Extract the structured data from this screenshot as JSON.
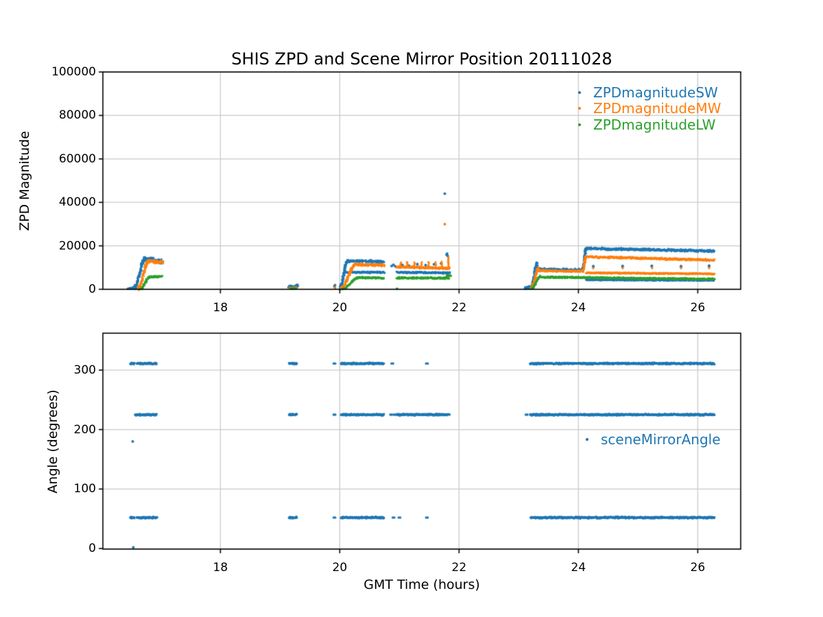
{
  "colors": {
    "blue": "#1f77b4",
    "orange": "#ff7f0e",
    "green": "#2ca02c",
    "grid": "#c9c9c9",
    "spine": "#000000",
    "text": "#000000",
    "background": "#ffffff"
  },
  "chart_data": [
    {
      "type": "scatter",
      "title": "SHIS ZPD and Scene Mirror Position 20111028",
      "xlabel": "",
      "ylabel": "ZPD Magnitude",
      "xlim": [
        16.03,
        26.72
      ],
      "ylim": [
        0,
        100000
      ],
      "xticks": [
        18,
        20,
        22,
        24,
        26
      ],
      "yticks": [
        0,
        20000,
        40000,
        60000,
        80000,
        100000
      ],
      "grid": true,
      "legend": {
        "position": "upper right",
        "frame": false,
        "entries": [
          {
            "label": "ZPDmagnitudeSW",
            "color": "#1f77b4"
          },
          {
            "label": "ZPDmagnitudeMW",
            "color": "#ff7f0e"
          },
          {
            "label": "ZPDmagnitudeLW",
            "color": "#2ca02c"
          }
        ]
      },
      "series": [
        {
          "name": "ZPDmagnitudeSW",
          "color": "#1f77b4",
          "bands": [
            {
              "t": [
                16.47,
                16.57
              ],
              "v": [
                300,
                900
              ],
              "s": 600
            },
            {
              "t": [
                16.57,
                16.73
              ],
              "v": [
                900,
                14200
              ],
              "s": 1400,
              "ramp": true
            },
            {
              "t": [
                16.73,
                17.03
              ],
              "v": [
                14000,
                12700
              ],
              "s": 1300
            },
            {
              "t": [
                19.15,
                19.3
              ],
              "v": [
                1200,
                1400
              ],
              "s": 1000
            },
            {
              "t": [
                20.0,
                20.13
              ],
              "v": [
                700,
                12900
              ],
              "s": 1000,
              "ramp": true
            },
            {
              "t": [
                20.13,
                20.74
              ],
              "v": [
                13100,
                12700
              ],
              "s": 700
            },
            {
              "t": [
                20.08,
                20.74
              ],
              "v": [
                7900,
                7800
              ],
              "s": 450
            },
            {
              "t": [
                20.95,
                21.85
              ],
              "v": [
                7800,
                7600
              ],
              "s": 450
            },
            {
              "t": [
                23.1,
                23.21
              ],
              "v": [
                600,
                1100
              ],
              "s": 700
            },
            {
              "t": [
                23.21,
                23.31
              ],
              "v": [
                1000,
                11800
              ],
              "s": 1200,
              "ramp": true
            },
            {
              "t": [
                23.31,
                24.07
              ],
              "v": [
                9300,
                8900
              ],
              "s": 650
            },
            {
              "t": [
                24.07,
                24.13
              ],
              "v": [
                9000,
                18800
              ],
              "s": 900,
              "ramp": true
            },
            {
              "t": [
                24.13,
                26.28
              ],
              "v": [
                18800,
                17600
              ],
              "s": 650
            },
            {
              "t": [
                24.13,
                26.28
              ],
              "v": [
                4350,
                4100
              ],
              "s": 280
            }
          ],
          "vlines": [],
          "points": [
            [
              16.45,
              250
            ],
            [
              19.91,
              1300
            ],
            [
              19.92,
              1900
            ],
            [
              20.87,
              10700
            ],
            [
              20.9,
              11300
            ],
            [
              20.93,
              10600
            ],
            [
              21.05,
              11200
            ],
            [
              21.16,
              10900
            ],
            [
              21.3,
              11600
            ],
            [
              21.44,
              11100
            ],
            [
              21.58,
              11500
            ],
            [
              21.7,
              11900
            ],
            [
              21.76,
              44000
            ],
            [
              21.79,
              15900
            ],
            [
              21.8,
              16400
            ],
            [
              21.81,
              15300
            ],
            [
              23.12,
              400
            ],
            [
              24.25,
              10350
            ],
            [
              24.25,
              10650
            ],
            [
              24.74,
              10300
            ],
            [
              24.74,
              10700
            ],
            [
              25.23,
              10450
            ],
            [
              25.23,
              10800
            ],
            [
              25.72,
              10350
            ],
            [
              25.72,
              10650
            ],
            [
              26.19,
              10500
            ],
            [
              26.19,
              10900
            ]
          ]
        },
        {
          "name": "ZPDmagnitudeMW",
          "color": "#ff7f0e",
          "bands": [
            {
              "t": [
                16.62,
                16.79
              ],
              "v": [
                400,
                12600
              ],
              "s": 1100,
              "ramp": true
            },
            {
              "t": [
                16.79,
                17.04
              ],
              "v": [
                12900,
                12500
              ],
              "s": 900
            },
            {
              "t": [
                19.16,
                19.28
              ],
              "v": [
                600,
                700
              ],
              "s": 400
            },
            {
              "t": [
                20.02,
                20.26
              ],
              "v": [
                400,
                11300
              ],
              "s": 900,
              "ramp": true
            },
            {
              "t": [
                20.26,
                20.74
              ],
              "v": [
                11400,
                11100
              ],
              "s": 600
            },
            {
              "t": [
                20.95,
                21.85
              ],
              "v": [
                10300,
                9700
              ],
              "s": 550
            },
            {
              "t": [
                23.21,
                23.33
              ],
              "v": [
                400,
                9400
              ],
              "s": 900,
              "ramp": true
            },
            {
              "t": [
                23.33,
                24.07
              ],
              "v": [
                8600,
                8300
              ],
              "s": 550
            },
            {
              "t": [
                24.07,
                24.13
              ],
              "v": [
                8500,
                15000
              ],
              "s": 700,
              "ramp": true
            },
            {
              "t": [
                24.13,
                26.28
              ],
              "v": [
                15000,
                13400
              ],
              "s": 550
            },
            {
              "t": [
                24.13,
                26.28
              ],
              "v": [
                7600,
                7100
              ],
              "s": 350
            }
          ],
          "vlines": [
            [
              21.02,
              10500,
              12400
            ],
            [
              21.13,
              10500,
              12600
            ],
            [
              21.25,
              10400,
              12400
            ],
            [
              21.37,
              10500,
              12500
            ],
            [
              21.49,
              10400,
              12600
            ],
            [
              21.61,
              10500,
              12500
            ],
            [
              21.71,
              10500,
              12700
            ],
            [
              21.82,
              9800,
              14800
            ],
            [
              24.25,
              9200,
              10000
            ],
            [
              24.74,
              9200,
              10000
            ],
            [
              25.23,
              9200,
              10000
            ],
            [
              25.72,
              9200,
              10000
            ],
            [
              26.19,
              9200,
              10000
            ]
          ],
          "points": [
            [
              19.92,
              700
            ],
            [
              21.76,
              30000
            ]
          ]
        },
        {
          "name": "ZPDmagnitudeLW",
          "color": "#2ca02c",
          "bands": [
            {
              "t": [
                16.66,
                16.81
              ],
              "v": [
                250,
                5500
              ],
              "s": 550,
              "ramp": true
            },
            {
              "t": [
                16.81,
                17.02
              ],
              "v": [
                5600,
                5950
              ],
              "s": 500
            },
            {
              "t": [
                19.17,
                19.27
              ],
              "v": [
                350,
                400
              ],
              "s": 250
            },
            {
              "t": [
                20.05,
                20.31
              ],
              "v": [
                250,
                5400
              ],
              "s": 500,
              "ramp": true
            },
            {
              "t": [
                20.31,
                20.74
              ],
              "v": [
                5400,
                5200
              ],
              "s": 420
            },
            {
              "t": [
                20.95,
                21.83
              ],
              "v": [
                5250,
                5150
              ],
              "s": 470
            },
            {
              "t": [
                21.79,
                21.86
              ],
              "v": [
                5900,
                6300
              ],
              "s": 700
            },
            {
              "t": [
                23.22,
                23.36
              ],
              "v": [
                300,
                6000
              ],
              "s": 550,
              "ramp": true
            },
            {
              "t": [
                23.36,
                24.07
              ],
              "v": [
                5600,
                5400
              ],
              "s": 420
            },
            {
              "t": [
                24.07,
                26.28
              ],
              "v": [
                5400,
                4700
              ],
              "s": 400
            }
          ],
          "vlines": [],
          "points": [
            [
              20.96,
              200
            ]
          ]
        }
      ]
    },
    {
      "type": "scatter",
      "title": "",
      "xlabel": "GMT Time (hours)",
      "ylabel": "Angle (degrees)",
      "xlim": [
        16.03,
        26.72
      ],
      "ylim": [
        -1,
        362
      ],
      "xticks": [
        18,
        20,
        22,
        24,
        26
      ],
      "yticks": [
        0,
        100,
        200,
        300
      ],
      "grid": true,
      "legend": {
        "position": "center right",
        "frame": false,
        "entries": [
          {
            "label": "sceneMirrorAngle",
            "color": "#1f77b4"
          }
        ]
      },
      "series": [
        {
          "name": "sceneMirrorAngle",
          "color": "#1f77b4",
          "rows": [
            {
              "angle": 311,
              "segments": [
                [
                  16.49,
                  16.56
                ],
                [
                  16.6,
                  16.93
                ],
                [
                  19.15,
                  19.28
                ],
                [
                  20.02,
                  20.74
                ],
                [
                  23.19,
                  26.28
                ]
              ],
              "dots": [
                19.91,
                20.88,
                21.46
              ]
            },
            {
              "angle": 225,
              "segments": [
                [
                  16.57,
                  16.93
                ],
                [
                  19.15,
                  19.28
                ],
                [
                  20.02,
                  20.74
                ],
                [
                  20.95,
                  21.84
                ],
                [
                  23.19,
                  26.28
                ]
              ],
              "dots": [
                19.91,
                20.86,
                20.92,
                23.13
              ]
            },
            {
              "angle": 52,
              "segments": [
                [
                  16.49,
                  16.56
                ],
                [
                  16.6,
                  16.94
                ],
                [
                  19.15,
                  19.28
                ],
                [
                  20.02,
                  20.74
                ],
                [
                  23.2,
                  26.28
                ]
              ],
              "dots": [
                19.91,
                20.9,
                21.0,
                21.46
              ]
            }
          ],
          "points": [
            [
              16.53,
              180
            ],
            [
              16.54,
              2
            ]
          ]
        }
      ]
    }
  ]
}
